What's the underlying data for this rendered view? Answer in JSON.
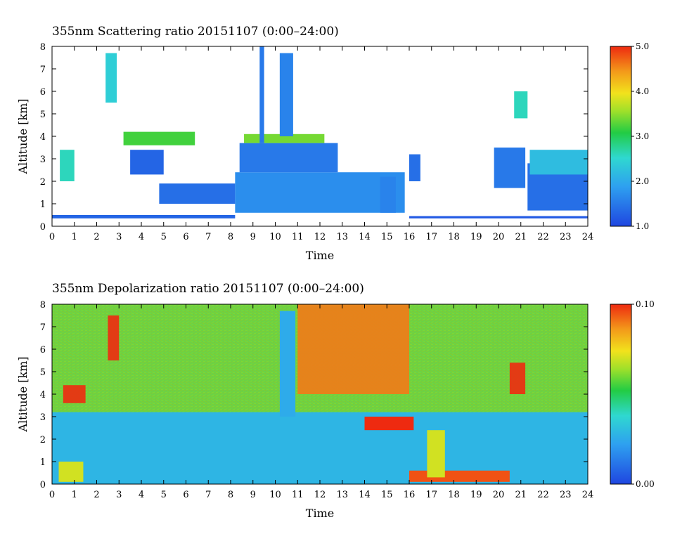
{
  "chart_data": [
    {
      "type": "heatmap",
      "title": "355nm Scattering ratio  20151107 (0:00–24:00)",
      "xlabel": "Time",
      "ylabel": "Altitude [km]",
      "xlim": [
        0,
        24
      ],
      "ylim": [
        0,
        8
      ],
      "x_ticks": [
        "0",
        "1",
        "2",
        "3",
        "4",
        "5",
        "6",
        "7",
        "8",
        "9",
        "10",
        "11",
        "12",
        "13",
        "14",
        "15",
        "16",
        "17",
        "18",
        "19",
        "20",
        "21",
        "22",
        "23",
        "24"
      ],
      "y_ticks": [
        "0",
        "1",
        "2",
        "3",
        "4",
        "5",
        "6",
        "7",
        "8"
      ],
      "colorbar": {
        "min": 1.0,
        "max": 5.0,
        "ticks": [
          "1.0",
          "2.0",
          "3.0",
          "4.0",
          "5.0"
        ]
      },
      "regions": [
        {
          "t0": 0.0,
          "t1": 8.2,
          "z0": 0.35,
          "z1": 0.5,
          "value": 1.3
        },
        {
          "t0": 0.35,
          "t1": 1.0,
          "z0": 2.0,
          "z1": 3.4,
          "value": 2.6
        },
        {
          "t0": 2.4,
          "t1": 2.9,
          "z0": 5.5,
          "z1": 7.7,
          "value": 2.4
        },
        {
          "t0": 3.5,
          "t1": 5.0,
          "z0": 2.3,
          "z1": 3.4,
          "value": 1.3
        },
        {
          "t0": 3.2,
          "t1": 6.4,
          "z0": 3.6,
          "z1": 4.2,
          "value": 3.2
        },
        {
          "t0": 4.8,
          "t1": 8.2,
          "z0": 1.0,
          "z1": 1.9,
          "value": 1.4
        },
        {
          "t0": 8.2,
          "t1": 15.8,
          "z0": 0.6,
          "z1": 2.4,
          "value": 1.7
        },
        {
          "t0": 8.4,
          "t1": 12.8,
          "z0": 2.4,
          "z1": 3.7,
          "value": 1.5
        },
        {
          "t0": 8.6,
          "t1": 12.2,
          "z0": 3.7,
          "z1": 4.1,
          "value": 3.4
        },
        {
          "t0": 9.3,
          "t1": 9.5,
          "z0": 3.7,
          "z1": 8.0,
          "value": 1.5
        },
        {
          "t0": 10.2,
          "t1": 10.8,
          "z0": 4.0,
          "z1": 7.7,
          "value": 1.6
        },
        {
          "t0": 14.7,
          "t1": 15.4,
          "z0": 0.6,
          "z1": 2.2,
          "value": 1.6
        },
        {
          "t0": 16.0,
          "t1": 16.5,
          "z0": 2.0,
          "z1": 3.2,
          "value": 1.4
        },
        {
          "t0": 19.8,
          "t1": 21.2,
          "z0": 1.7,
          "z1": 3.5,
          "value": 1.5
        },
        {
          "t0": 20.7,
          "t1": 21.3,
          "z0": 4.8,
          "z1": 6.0,
          "value": 2.6
        },
        {
          "t0": 21.3,
          "t1": 24.0,
          "z0": 0.7,
          "z1": 2.8,
          "value": 1.4
        },
        {
          "t0": 21.4,
          "t1": 24.0,
          "z0": 2.3,
          "z1": 3.4,
          "value": 2.2
        },
        {
          "t0": 16.0,
          "t1": 24.0,
          "z0": 0.35,
          "z1": 0.45,
          "value": 1.2
        }
      ]
    },
    {
      "type": "heatmap",
      "title": "355nm Depolarization ratio  20151107 (0:00–24:00)",
      "xlabel": "Time",
      "ylabel": "Altitude [km]",
      "xlim": [
        0,
        24
      ],
      "ylim": [
        0,
        8
      ],
      "x_ticks": [
        "0",
        "1",
        "2",
        "3",
        "4",
        "5",
        "6",
        "7",
        "8",
        "9",
        "10",
        "11",
        "12",
        "13",
        "14",
        "15",
        "16",
        "17",
        "18",
        "19",
        "20",
        "21",
        "22",
        "23",
        "24"
      ],
      "y_ticks": [
        "0",
        "1",
        "2",
        "3",
        "4",
        "5",
        "6",
        "7",
        "8"
      ],
      "colorbar": {
        "min": 0.0,
        "max": 0.1,
        "ticks": [
          "0.00",
          "0.10"
        ]
      },
      "regions": [
        {
          "t0": 0.0,
          "t1": 24.0,
          "z0": 0.0,
          "z1": 3.2,
          "value": 0.028
        },
        {
          "t0": 0.0,
          "t1": 24.0,
          "z0": 3.2,
          "z1": 8.0,
          "value": 0.06
        },
        {
          "t0": 0.3,
          "t1": 1.4,
          "z0": 0.1,
          "z1": 1.0,
          "value": 0.07
        },
        {
          "t0": 0.5,
          "t1": 1.5,
          "z0": 3.6,
          "z1": 4.4,
          "value": 0.1
        },
        {
          "t0": 2.5,
          "t1": 3.0,
          "z0": 5.5,
          "z1": 7.5,
          "value": 0.1
        },
        {
          "t0": 10.2,
          "t1": 10.9,
          "z0": 3.0,
          "z1": 7.7,
          "value": 0.025
        },
        {
          "t0": 11.0,
          "t1": 16.0,
          "z0": 4.0,
          "z1": 8.0,
          "value": 0.09
        },
        {
          "t0": 14.0,
          "t1": 16.2,
          "z0": 2.4,
          "z1": 3.0,
          "value": 0.1
        },
        {
          "t0": 16.0,
          "t1": 20.5,
          "z0": 0.1,
          "z1": 0.6,
          "value": 0.095
        },
        {
          "t0": 16.8,
          "t1": 17.6,
          "z0": 0.3,
          "z1": 2.4,
          "value": 0.07
        },
        {
          "t0": 20.5,
          "t1": 21.2,
          "z0": 4.0,
          "z1": 5.4,
          "value": 0.1
        }
      ]
    }
  ]
}
